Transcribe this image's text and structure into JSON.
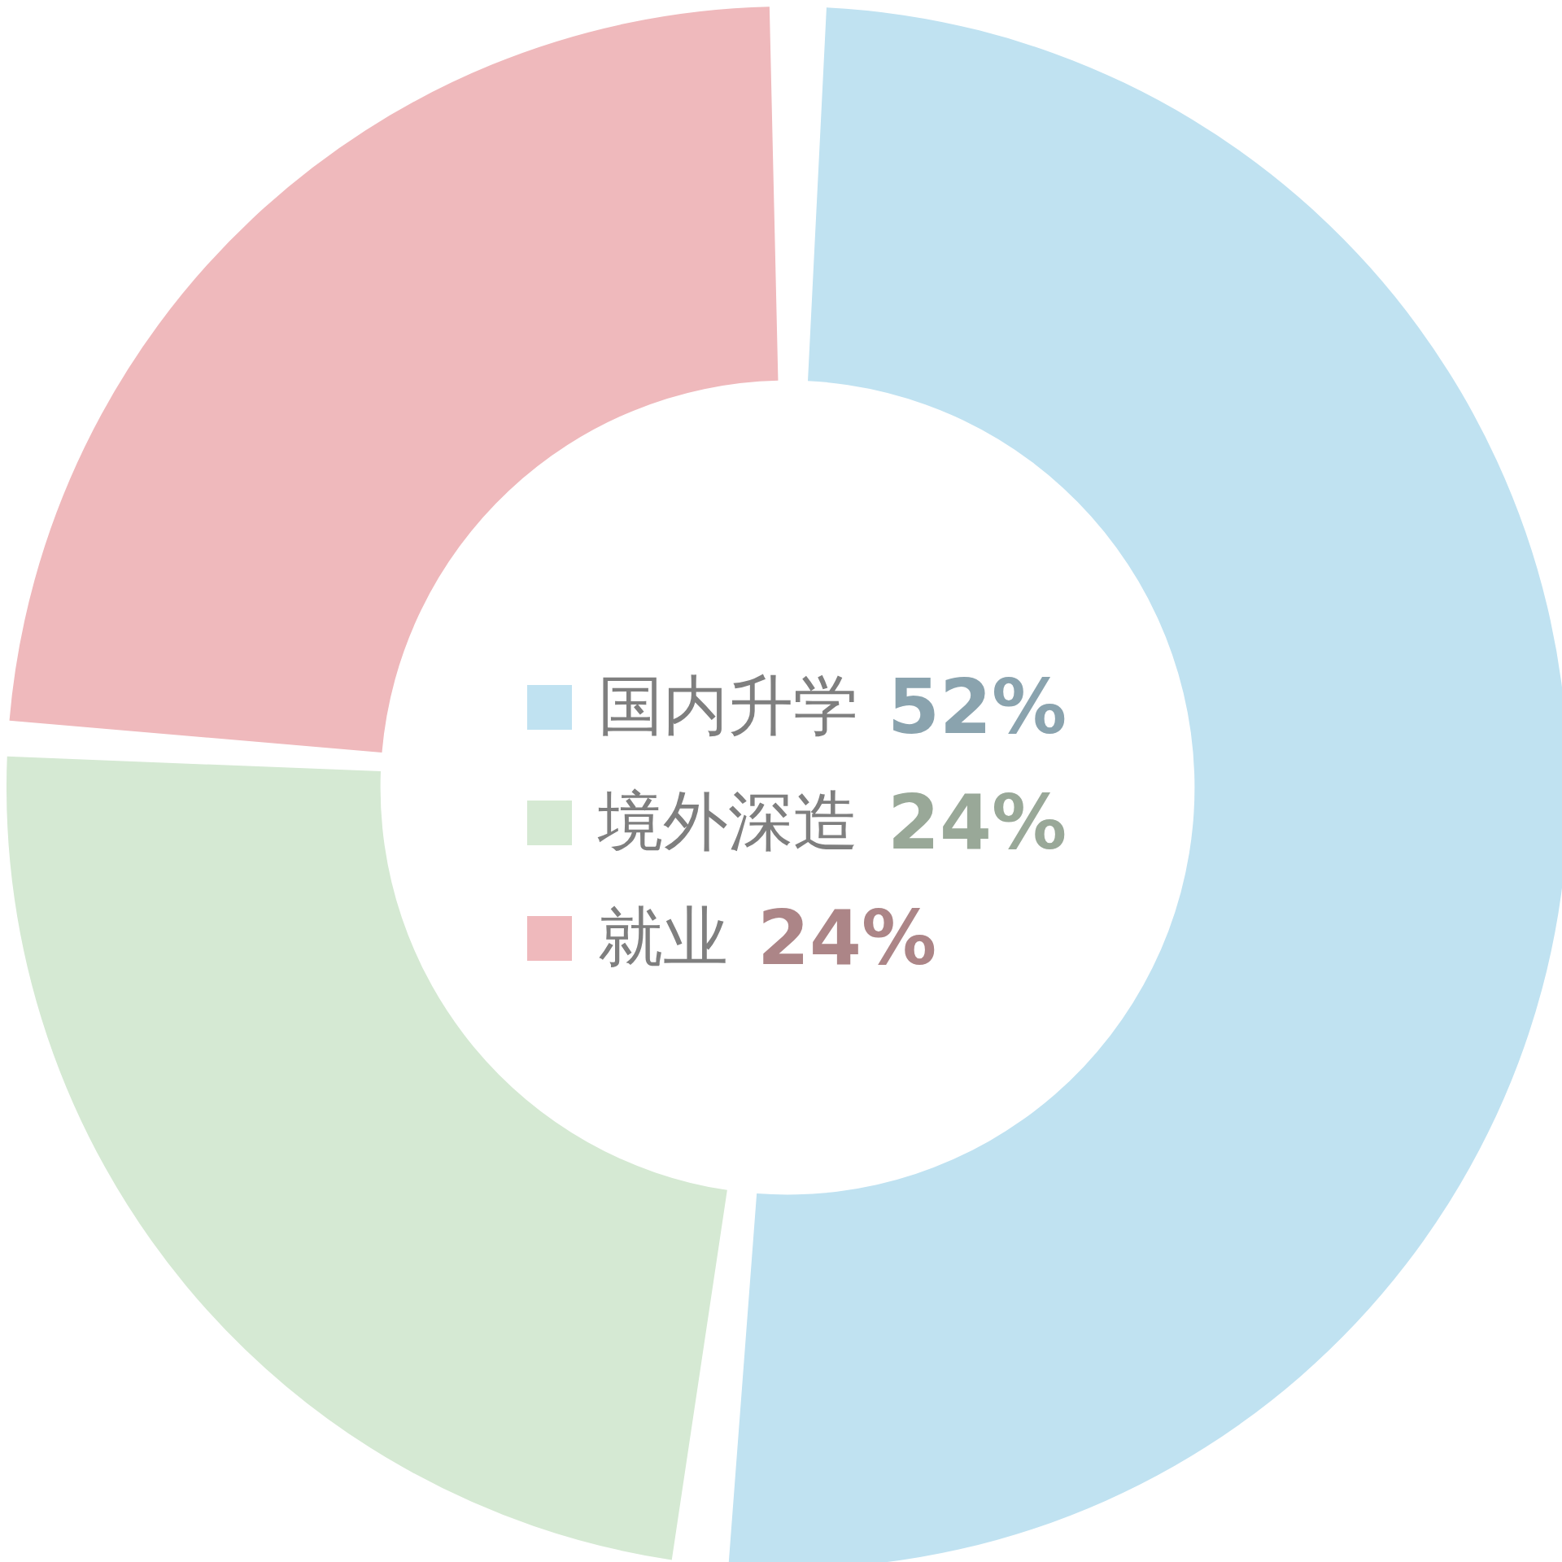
{
  "chart_data": {
    "type": "donut",
    "categories": [
      "国内升学",
      "境外深造",
      "就业"
    ],
    "values": [
      52,
      24,
      24
    ],
    "colors": [
      "#c0e2f1",
      "#d5e9d3",
      "#efb9bc"
    ],
    "value_labels": [
      "52%",
      "24%",
      "24%"
    ],
    "legend": "center"
  }
}
